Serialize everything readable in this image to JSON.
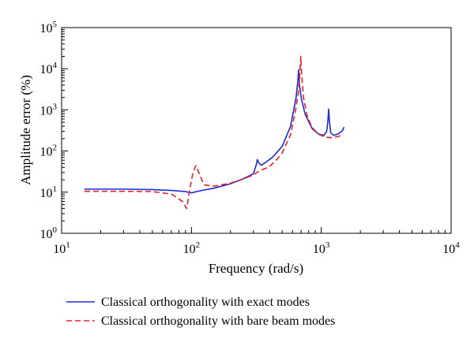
{
  "chart_data": {
    "type": "line",
    "xscale": "log",
    "yscale": "log",
    "xlim": [
      10,
      10000
    ],
    "ylim": [
      1,
      100000
    ],
    "xticks": [
      10,
      100,
      1000,
      10000
    ],
    "yticks": [
      1,
      10,
      100,
      1000,
      10000,
      100000
    ],
    "xlabel": "Frequency (rad/s)",
    "ylabel": "Amplitude error (%)",
    "grid": false,
    "legend_position": "below",
    "series": [
      {
        "name": "Classical orthogonality with exact modes",
        "color": "#1f2bd0",
        "style": "solid",
        "points": [
          [
            15,
            11.8
          ],
          [
            30,
            11.8
          ],
          [
            50,
            11.5
          ],
          [
            70,
            11.0
          ],
          [
            90,
            10.3
          ],
          [
            100,
            9.6
          ],
          [
            120,
            11.0
          ],
          [
            150,
            12.5
          ],
          [
            200,
            16.0
          ],
          [
            250,
            21.0
          ],
          [
            300,
            28.0
          ],
          [
            315,
            45.0
          ],
          [
            322,
            62.0
          ],
          [
            330,
            52.0
          ],
          [
            345,
            45.0
          ],
          [
            370,
            52.0
          ],
          [
            420,
            70.0
          ],
          [
            500,
            130.0
          ],
          [
            580,
            400.0
          ],
          [
            640,
            2000.0
          ],
          [
            660,
            5000.0
          ],
          [
            670,
            9500.0
          ],
          [
            680,
            4000.0
          ],
          [
            700,
            2000.0
          ],
          [
            750,
            800.0
          ],
          [
            850,
            350.0
          ],
          [
            950,
            260.0
          ],
          [
            1050,
            240.0
          ],
          [
            1100,
            300.0
          ],
          [
            1125,
            550.0
          ],
          [
            1140,
            1050.0
          ],
          [
            1155,
            550.0
          ],
          [
            1180,
            280.0
          ],
          [
            1250,
            240.0
          ],
          [
            1350,
            260.0
          ],
          [
            1450,
            310.0
          ],
          [
            1500,
            380.0
          ]
        ]
      },
      {
        "name": "Classical orthogonality with bare beam modes",
        "color": "#e8202a",
        "style": "dashed",
        "points": [
          [
            15,
            10.5
          ],
          [
            30,
            10.5
          ],
          [
            50,
            10.3
          ],
          [
            70,
            9.0
          ],
          [
            85,
            6.0
          ],
          [
            92,
            4.0
          ],
          [
            97,
            12.0
          ],
          [
            103,
            30.0
          ],
          [
            108,
            44.0
          ],
          [
            115,
            28.0
          ],
          [
            125,
            15.0
          ],
          [
            150,
            14.0
          ],
          [
            200,
            16.5
          ],
          [
            250,
            21.0
          ],
          [
            300,
            26.0
          ],
          [
            330,
            32.0
          ],
          [
            400,
            42.0
          ],
          [
            450,
            60.0
          ],
          [
            500,
            90.0
          ],
          [
            580,
            250.0
          ],
          [
            630,
            900.0
          ],
          [
            665,
            2500.0
          ],
          [
            685,
            8000.0
          ],
          [
            695,
            20000.0
          ],
          [
            705,
            8000.0
          ],
          [
            730,
            2000.0
          ],
          [
            780,
            700.0
          ],
          [
            850,
            370.0
          ],
          [
            950,
            260.0
          ],
          [
            1050,
            220.0
          ],
          [
            1200,
            210.0
          ],
          [
            1350,
            225.0
          ],
          [
            1450,
            245.0
          ]
        ]
      }
    ]
  }
}
